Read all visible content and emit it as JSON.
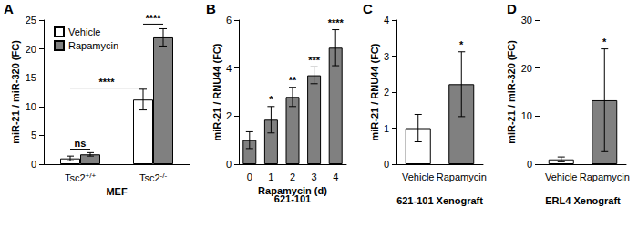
{
  "chart_data": [
    {
      "type": "bar",
      "title": "A",
      "xlabel": "MEF",
      "ylabel": "miR-21 / miR-320 (FC)",
      "categories": [
        "Tsc2+/+",
        "Tsc2-/-"
      ],
      "series": [
        {
          "name": "Vehicle",
          "color": "#ffffff",
          "values": [
            1.0,
            11.2
          ],
          "errors": [
            0.4,
            1.8
          ]
        },
        {
          "name": "Rapamycin",
          "color": "#808080",
          "values": [
            1.7,
            22.0
          ],
          "errors": [
            0.3,
            1.5
          ]
        }
      ],
      "ylim": [
        0,
        25
      ],
      "yticks": [
        0,
        5,
        10,
        15,
        20,
        25
      ],
      "grid": false,
      "legend": "top-left",
      "annotations": [
        {
          "text": "ns",
          "category": "Tsc2+/+",
          "y": 2.6
        },
        {
          "text": "****",
          "series": "Vehicle",
          "y": 13.2
        },
        {
          "text": "****",
          "category": "Tsc2-/-",
          "y": 24.3
        }
      ]
    },
    {
      "type": "bar",
      "title": "B",
      "xlabel": "Rapamycin (d)",
      "subtitle": "621-101",
      "ylabel": "miR-21 / RNU44 (FC)",
      "categories": [
        "0",
        "1",
        "2",
        "3",
        "4"
      ],
      "values": [
        1.0,
        1.85,
        2.8,
        3.7,
        4.85
      ],
      "errors": [
        0.35,
        0.55,
        0.4,
        0.35,
        0.75
      ],
      "color": "#808080",
      "ylim": [
        0,
        6
      ],
      "yticks": [
        0,
        2,
        4,
        6
      ],
      "grid": false,
      "annotations": [
        null,
        "*",
        "**",
        "***",
        "****"
      ]
    },
    {
      "type": "bar",
      "title": "C",
      "xlabel": "621-101 Xenograft",
      "ylabel": "miR-21 / RNU44 (FC)",
      "categories": [
        "Vehicle",
        "Rapamycin"
      ],
      "values": [
        1.0,
        2.22
      ],
      "errors": [
        0.38,
        0.9
      ],
      "colors": [
        "#ffffff",
        "#808080"
      ],
      "ylim": [
        0,
        4
      ],
      "yticks": [
        0,
        1,
        2,
        3,
        4
      ],
      "grid": false,
      "annotations": [
        null,
        "*"
      ]
    },
    {
      "type": "bar",
      "title": "D",
      "xlabel": "ERL4 Xenograft",
      "ylabel": "miR-21 / miR-320 (FC)",
      "categories": [
        "Vehicle",
        "Rapamycin"
      ],
      "values": [
        1.0,
        13.3
      ],
      "errors": [
        0.5,
        10.7
      ],
      "colors": [
        "#ffffff",
        "#808080"
      ],
      "ylim": [
        0,
        30
      ],
      "yticks": [
        0,
        10,
        20,
        30
      ],
      "grid": false,
      "annotations": [
        null,
        "*"
      ]
    }
  ]
}
